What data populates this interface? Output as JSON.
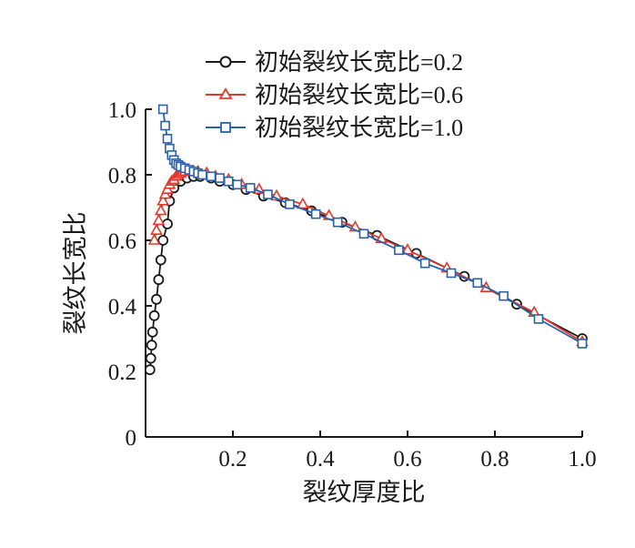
{
  "chart_data": {
    "type": "line",
    "title": "",
    "xlabel": "裂纹厚度比",
    "ylabel": "裂纹长宽比",
    "xlim": [
      0,
      1.0
    ],
    "ylim": [
      0,
      1.0
    ],
    "x_ticks": [
      0.2,
      0.4,
      0.6,
      0.8,
      1.0
    ],
    "x_tick_labels": [
      "0.2",
      "0.4",
      "0.6",
      "0.8",
      "1.0"
    ],
    "y_ticks": [
      0,
      0.2,
      0.4,
      0.6,
      0.8,
      1.0
    ],
    "y_tick_labels": [
      "0",
      "0.2",
      "0.4",
      "0.6",
      "0.8",
      "1.0"
    ],
    "grid": false,
    "legend_position": "top",
    "series": [
      {
        "name": "初始裂纹长宽比=0.2",
        "color": "#1a1a1a",
        "marker": "circle",
        "x": [
          0.01,
          0.012,
          0.014,
          0.016,
          0.02,
          0.025,
          0.03,
          0.035,
          0.04,
          0.05,
          0.055,
          0.065,
          0.08,
          0.095,
          0.11,
          0.125,
          0.15,
          0.17,
          0.2,
          0.23,
          0.27,
          0.32,
          0.38,
          0.45,
          0.53,
          0.62,
          0.73,
          0.85,
          1.0
        ],
        "y": [
          0.205,
          0.24,
          0.28,
          0.32,
          0.37,
          0.42,
          0.48,
          0.54,
          0.6,
          0.65,
          0.72,
          0.76,
          0.78,
          0.79,
          0.795,
          0.795,
          0.79,
          0.78,
          0.77,
          0.755,
          0.735,
          0.715,
          0.69,
          0.655,
          0.615,
          0.56,
          0.49,
          0.405,
          0.3
        ]
      },
      {
        "name": "初始裂纹长宽比=0.6",
        "color": "#e03a2e",
        "marker": "triangle",
        "x": [
          0.02,
          0.025,
          0.03,
          0.035,
          0.04,
          0.045,
          0.05,
          0.055,
          0.06,
          0.065,
          0.07,
          0.075,
          0.08,
          0.085,
          0.09,
          0.1,
          0.11,
          0.12,
          0.14,
          0.16,
          0.19,
          0.22,
          0.26,
          0.3,
          0.36,
          0.42,
          0.48,
          0.54,
          0.6,
          0.69,
          0.78,
          0.89,
          1.0
        ],
        "y": [
          0.6,
          0.63,
          0.66,
          0.69,
          0.72,
          0.74,
          0.755,
          0.77,
          0.78,
          0.785,
          0.795,
          0.8,
          0.805,
          0.81,
          0.81,
          0.81,
          0.81,
          0.81,
          0.805,
          0.795,
          0.785,
          0.77,
          0.755,
          0.735,
          0.71,
          0.675,
          0.64,
          0.605,
          0.57,
          0.515,
          0.455,
          0.38,
          0.29
        ]
      },
      {
        "name": "初始裂纹长宽比=1.0",
        "color": "#2a62a8",
        "marker": "square",
        "x": [
          0.04,
          0.045,
          0.05,
          0.055,
          0.06,
          0.065,
          0.07,
          0.075,
          0.08,
          0.09,
          0.1,
          0.11,
          0.12,
          0.13,
          0.15,
          0.17,
          0.19,
          0.21,
          0.24,
          0.28,
          0.33,
          0.39,
          0.44,
          0.5,
          0.58,
          0.64,
          0.7,
          0.76,
          0.82,
          0.9,
          1.0
        ],
        "y": [
          1.0,
          0.95,
          0.91,
          0.88,
          0.86,
          0.845,
          0.835,
          0.83,
          0.825,
          0.82,
          0.815,
          0.81,
          0.805,
          0.8,
          0.795,
          0.79,
          0.78,
          0.77,
          0.76,
          0.74,
          0.71,
          0.68,
          0.655,
          0.62,
          0.57,
          0.53,
          0.5,
          0.47,
          0.43,
          0.36,
          0.285
        ]
      }
    ]
  }
}
